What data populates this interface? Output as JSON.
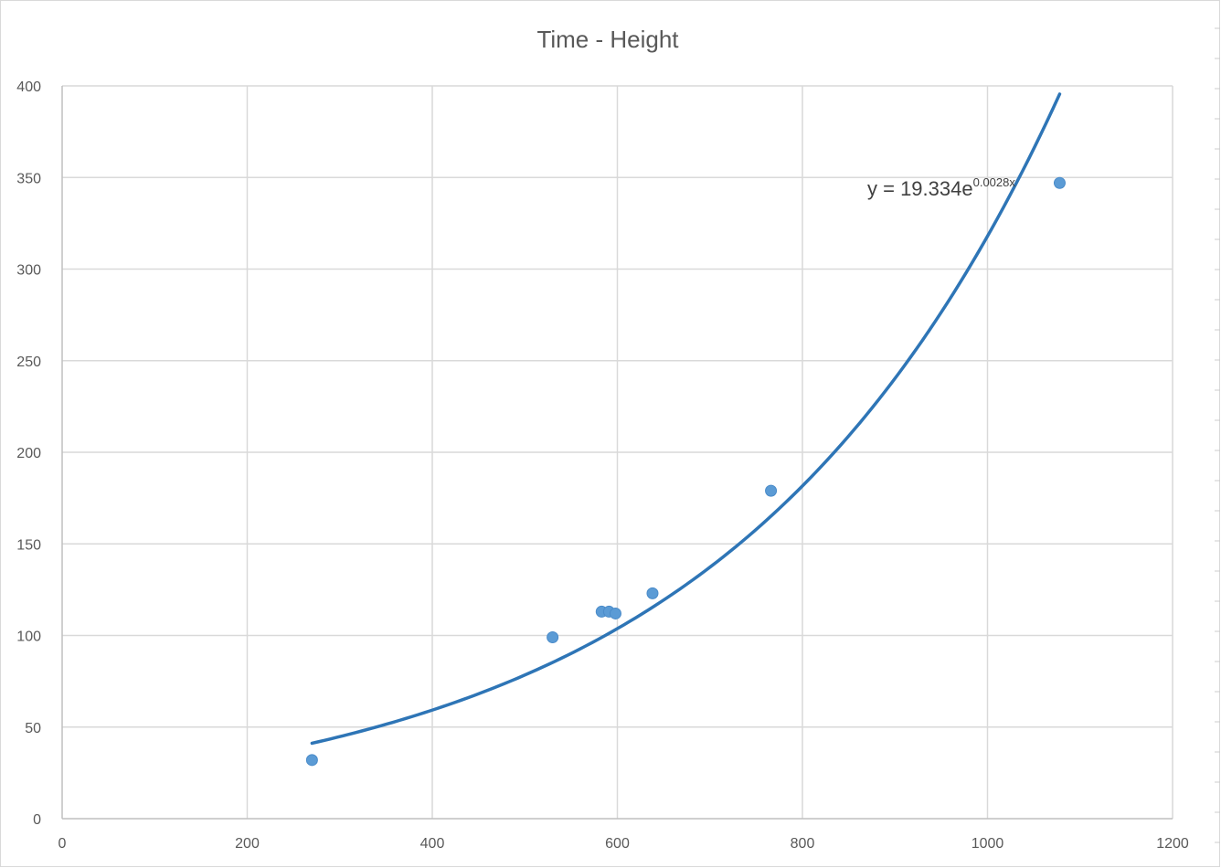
{
  "chart_data": {
    "type": "scatter",
    "title": "Time - Height",
    "xlabel": "",
    "ylabel": "",
    "xlim": [
      0,
      1200
    ],
    "ylim": [
      0,
      400
    ],
    "x_ticks": [
      "0",
      "200",
      "400",
      "600",
      "800",
      "1000",
      "1200"
    ],
    "y_ticks": [
      "0",
      "50",
      "100",
      "150",
      "200",
      "250",
      "300",
      "350",
      "400"
    ],
    "grid": true,
    "legend": "none",
    "series": [
      {
        "points": [
          {
            "x": 270,
            "y": 32
          },
          {
            "x": 530,
            "y": 99
          },
          {
            "x": 583,
            "y": 113
          },
          {
            "x": 591,
            "y": 113
          },
          {
            "x": 598,
            "y": 112
          },
          {
            "x": 638,
            "y": 123
          },
          {
            "x": 766,
            "y": 179
          },
          {
            "x": 1078,
            "y": 347
          }
        ]
      }
    ],
    "trendline": {
      "kind": "exponential",
      "a": 19.334,
      "b": 0.0028,
      "x_range": [
        270,
        1078
      ],
      "label_main": "y = 19.334e",
      "label_exponent": "0.0028x"
    },
    "colors": {
      "point": "#5b9bd5",
      "trendline": "#2e75b6",
      "grid": "#d9d9d9",
      "text": "#595959"
    }
  }
}
